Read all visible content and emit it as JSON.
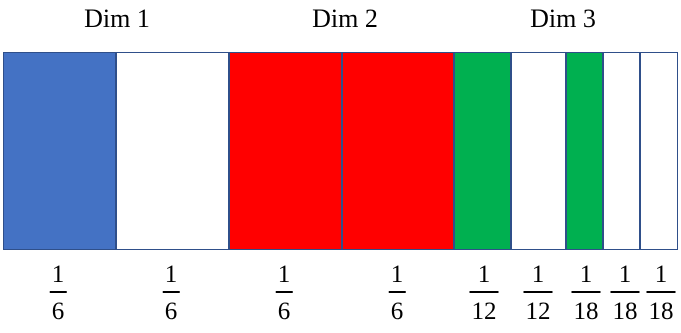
{
  "dimensions": [
    {
      "label": "Dim 1"
    },
    {
      "label": "Dim 2"
    },
    {
      "label": "Dim 3"
    }
  ],
  "segments": [
    {
      "name": "dim1-blue",
      "color": "#4472c4",
      "fraction": {
        "num": "1",
        "den": "6"
      }
    },
    {
      "name": "dim1-white",
      "color": "#ffffff",
      "fraction": {
        "num": "1",
        "den": "6"
      }
    },
    {
      "name": "dim2-red-a",
      "color": "#ff0000",
      "fraction": {
        "num": "1",
        "den": "6"
      }
    },
    {
      "name": "dim2-red-b",
      "color": "#ff0000",
      "fraction": {
        "num": "1",
        "den": "6"
      }
    },
    {
      "name": "dim3-green-a",
      "color": "#00b050",
      "fraction": {
        "num": "1",
        "den": "12"
      }
    },
    {
      "name": "dim3-white-a",
      "color": "#ffffff",
      "fraction": {
        "num": "1",
        "den": "12"
      }
    },
    {
      "name": "dim3-green-b",
      "color": "#00b050",
      "fraction": {
        "num": "1",
        "den": "18"
      }
    },
    {
      "name": "dim3-white-b",
      "color": "#ffffff",
      "fraction": {
        "num": "1",
        "den": "18"
      }
    },
    {
      "name": "dim3-white-c",
      "color": "#ffffff",
      "fraction": {
        "num": "1",
        "den": "18"
      }
    }
  ]
}
